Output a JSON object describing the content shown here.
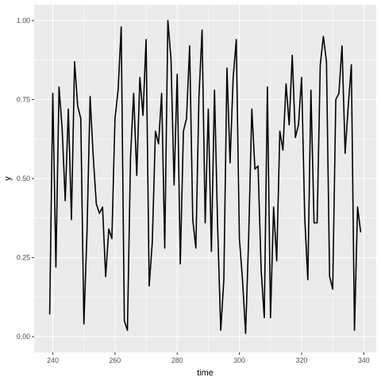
{
  "chart_data": {
    "type": "line",
    "title": "",
    "xlabel": "time",
    "ylabel": "y",
    "xlim": [
      234,
      344
    ],
    "ylim": [
      -0.05,
      1.05
    ],
    "grid": true,
    "x_ticks": [
      240,
      260,
      280,
      300,
      320,
      340
    ],
    "y_ticks": [
      0.0,
      0.25,
      0.5,
      0.75,
      1.0
    ],
    "x_tick_labels": [
      "240",
      "260",
      "280",
      "300",
      "320",
      "340"
    ],
    "y_tick_labels": [
      "0.00",
      "0.25",
      "0.50",
      "0.75",
      "1.00"
    ],
    "series": [
      {
        "color": "#000000",
        "x": [
          239,
          240,
          241,
          242,
          243,
          244,
          245,
          246,
          247,
          248,
          249,
          250,
          251,
          252,
          253,
          254,
          255,
          256,
          257,
          258,
          259,
          260,
          261,
          262,
          263,
          264,
          265,
          266,
          267,
          268,
          269,
          270,
          271,
          272,
          273,
          274,
          275,
          276,
          277,
          278,
          279,
          280,
          281,
          282,
          283,
          284,
          285,
          286,
          287,
          288,
          289,
          290,
          291,
          292,
          293,
          294,
          295,
          296,
          297,
          298,
          299,
          300,
          301,
          302,
          303,
          304,
          305,
          306,
          307,
          308,
          309,
          310,
          311,
          312,
          313,
          314,
          315,
          316,
          317,
          318,
          319,
          320,
          321,
          322,
          323,
          324,
          325,
          326,
          327,
          328,
          329,
          330,
          331,
          332,
          333,
          334,
          335,
          336,
          337,
          338,
          339
        ],
        "values": [
          0.07,
          0.77,
          0.22,
          0.79,
          0.66,
          0.43,
          0.72,
          0.37,
          0.87,
          0.73,
          0.69,
          0.04,
          0.33,
          0.76,
          0.57,
          0.42,
          0.39,
          0.41,
          0.19,
          0.34,
          0.31,
          0.69,
          0.78,
          0.98,
          0.05,
          0.02,
          0.57,
          0.77,
          0.51,
          0.82,
          0.7,
          0.94,
          0.16,
          0.3,
          0.65,
          0.61,
          0.77,
          0.28,
          1.0,
          0.88,
          0.48,
          0.83,
          0.23,
          0.65,
          0.69,
          0.92,
          0.37,
          0.28,
          0.76,
          0.97,
          0.36,
          0.72,
          0.27,
          0.78,
          0.35,
          0.02,
          0.18,
          0.85,
          0.55,
          0.82,
          0.94,
          0.31,
          0.18,
          0.01,
          0.32,
          0.72,
          0.53,
          0.54,
          0.21,
          0.06,
          0.79,
          0.06,
          0.41,
          0.24,
          0.65,
          0.59,
          0.8,
          0.67,
          0.89,
          0.63,
          0.67,
          0.82,
          0.38,
          0.18,
          0.78,
          0.36,
          0.36,
          0.86,
          0.95,
          0.87,
          0.19,
          0.15,
          0.75,
          0.77,
          0.92,
          0.58,
          0.73,
          0.86,
          0.02,
          0.41,
          0.33
        ]
      }
    ]
  }
}
